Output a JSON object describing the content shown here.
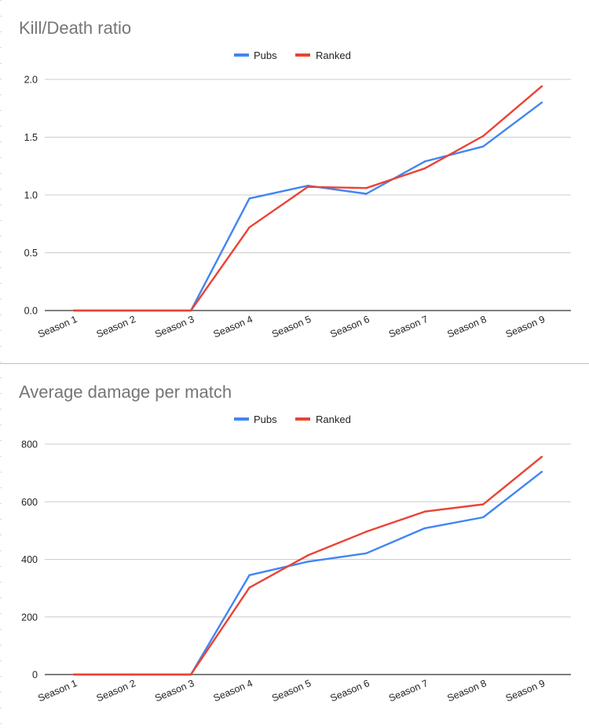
{
  "chart_data": [
    {
      "type": "line",
      "title": "Kill/Death ratio",
      "categories": [
        "Season 1",
        "Season 2",
        "Season 3",
        "Season 4",
        "Season 5",
        "Season 6",
        "Season 7",
        "Season 8",
        "Season 9"
      ],
      "series": [
        {
          "name": "Pubs",
          "color": "#4285f4",
          "values": [
            0,
            0,
            0,
            0.97,
            1.08,
            1.01,
            1.29,
            1.42,
            1.8
          ]
        },
        {
          "name": "Ranked",
          "color": "#ea4335",
          "values": [
            0,
            0,
            0,
            0.72,
            1.07,
            1.06,
            1.23,
            1.51,
            1.94
          ]
        }
      ],
      "yticks": [
        "0.0",
        "0.5",
        "1.0",
        "1.5",
        "2.0"
      ],
      "ylim": [
        0,
        2.0
      ],
      "grid": true,
      "legend": "top-center"
    },
    {
      "type": "line",
      "title": "Average damage per match",
      "categories": [
        "Season 1",
        "Season 2",
        "Season 3",
        "Season 4",
        "Season 5",
        "Season 6",
        "Season 7",
        "Season 8",
        "Season 9"
      ],
      "series": [
        {
          "name": "Pubs",
          "color": "#4285f4",
          "values": [
            0,
            0,
            0,
            345,
            392,
            421,
            508,
            546,
            704
          ]
        },
        {
          "name": "Ranked",
          "color": "#ea4335",
          "values": [
            0,
            0,
            0,
            302,
            414,
            496,
            566,
            591,
            756
          ]
        }
      ],
      "yticks": [
        "0",
        "200",
        "400",
        "600",
        "800"
      ],
      "ylim": [
        0,
        800
      ],
      "grid": true,
      "legend": "top-center"
    }
  ]
}
